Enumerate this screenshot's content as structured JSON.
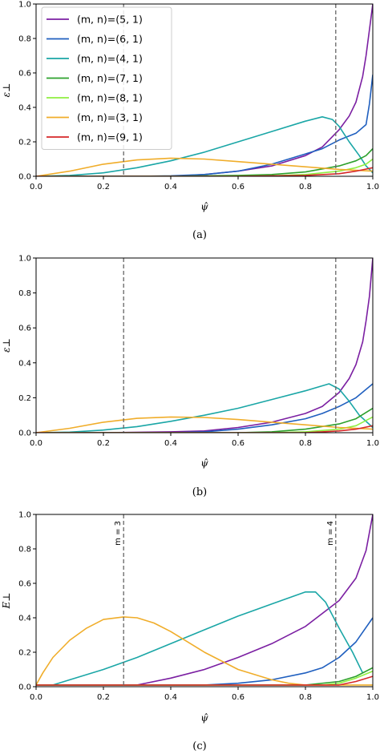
{
  "chart_data": [
    {
      "type": "line",
      "panel": "a",
      "caption": "(a)",
      "xlabel": "ψ̂",
      "ylabel": "ε⊥",
      "xlim": [
        0,
        1
      ],
      "ylim": [
        0,
        1
      ],
      "xticks": [
        "0.0",
        "0.2",
        "0.4",
        "0.6",
        "0.8",
        "1.0"
      ],
      "yticks": [
        "0.0",
        "0.2",
        "0.4",
        "0.6",
        "0.8",
        "1.0"
      ],
      "grid": false,
      "legend_position": "top-left",
      "vlines": [
        {
          "x": 0.26,
          "label": ""
        },
        {
          "x": 0.89,
          "label": ""
        }
      ],
      "series": [
        {
          "name": "(m, n)=(5, 1)",
          "color": "#7b1fa2",
          "x": [
            0,
            0.1,
            0.2,
            0.3,
            0.4,
            0.5,
            0.6,
            0.7,
            0.8,
            0.85,
            0.9,
            0.93,
            0.95,
            0.97,
            0.98,
            0.99,
            1.0
          ],
          "y": [
            0,
            0,
            0,
            0,
            0,
            0.01,
            0.03,
            0.06,
            0.12,
            0.17,
            0.27,
            0.35,
            0.43,
            0.58,
            0.7,
            0.85,
            1.0
          ]
        },
        {
          "name": "(m, n)=(6, 1)",
          "color": "#1f5fbf",
          "x": [
            0,
            0.1,
            0.2,
            0.3,
            0.4,
            0.5,
            0.6,
            0.7,
            0.8,
            0.85,
            0.9,
            0.95,
            0.98,
            0.99,
            1.0
          ],
          "y": [
            0,
            0,
            0,
            0,
            0.003,
            0.01,
            0.03,
            0.07,
            0.13,
            0.16,
            0.21,
            0.25,
            0.3,
            0.42,
            0.59
          ]
        },
        {
          "name": "(m, n)=(4, 1)",
          "color": "#1aa6a6",
          "x": [
            0,
            0.1,
            0.2,
            0.3,
            0.4,
            0.5,
            0.6,
            0.7,
            0.8,
            0.85,
            0.88,
            0.9,
            0.93,
            0.96,
            0.98,
            1.0
          ],
          "y": [
            0,
            0.005,
            0.02,
            0.05,
            0.09,
            0.14,
            0.2,
            0.26,
            0.32,
            0.345,
            0.33,
            0.29,
            0.2,
            0.12,
            0.06,
            0.02
          ]
        },
        {
          "name": "(m, n)=(7, 1)",
          "color": "#2ca02c",
          "x": [
            0,
            0.2,
            0.4,
            0.6,
            0.7,
            0.8,
            0.9,
            0.95,
            0.98,
            1.0
          ],
          "y": [
            0,
            0,
            0,
            0.005,
            0.01,
            0.025,
            0.06,
            0.09,
            0.12,
            0.16
          ]
        },
        {
          "name": "(m, n)=(8, 1)",
          "color": "#8fef40",
          "x": [
            0,
            0.5,
            0.7,
            0.8,
            0.9,
            0.95,
            0.98,
            1.0
          ],
          "y": [
            0,
            0,
            0.003,
            0.01,
            0.03,
            0.05,
            0.07,
            0.1
          ]
        },
        {
          "name": "(m, n)=(3, 1)",
          "color": "#f0ad2a",
          "x": [
            0,
            0.1,
            0.2,
            0.3,
            0.4,
            0.5,
            0.6,
            0.7,
            0.8,
            0.9,
            1.0
          ],
          "y": [
            0,
            0.03,
            0.07,
            0.095,
            0.105,
            0.1,
            0.085,
            0.07,
            0.055,
            0.04,
            0.03
          ]
        },
        {
          "name": "(m, n)=(9, 1)",
          "color": "#d62728",
          "x": [
            0,
            0.6,
            0.8,
            0.9,
            0.95,
            1.0
          ],
          "y": [
            0,
            0,
            0.005,
            0.015,
            0.03,
            0.05
          ]
        }
      ]
    },
    {
      "type": "line",
      "panel": "b",
      "caption": "(b)",
      "xlabel": "ψ̂",
      "ylabel": "ε⊥",
      "xlim": [
        0,
        1
      ],
      "ylim": [
        0,
        1
      ],
      "xticks": [
        "0.0",
        "0.2",
        "0.4",
        "0.6",
        "0.8",
        "1.0"
      ],
      "yticks": [
        "0.0",
        "0.2",
        "0.4",
        "0.6",
        "0.8",
        "1.0"
      ],
      "grid": false,
      "vlines": [
        {
          "x": 0.26,
          "label": ""
        },
        {
          "x": 0.89,
          "label": ""
        }
      ],
      "series": [
        {
          "color": "#7b1fa2",
          "x": [
            0,
            0.2,
            0.4,
            0.5,
            0.6,
            0.7,
            0.8,
            0.85,
            0.9,
            0.93,
            0.95,
            0.97,
            0.98,
            0.99,
            1.0
          ],
          "y": [
            0,
            0,
            0.005,
            0.01,
            0.03,
            0.06,
            0.11,
            0.15,
            0.23,
            0.31,
            0.39,
            0.52,
            0.64,
            0.78,
            1.0
          ]
        },
        {
          "color": "#1f5fbf",
          "x": [
            0,
            0.4,
            0.5,
            0.6,
            0.7,
            0.8,
            0.85,
            0.9,
            0.95,
            1.0
          ],
          "y": [
            0,
            0,
            0.005,
            0.02,
            0.045,
            0.08,
            0.11,
            0.15,
            0.2,
            0.28
          ]
        },
        {
          "color": "#1aa6a6",
          "x": [
            0,
            0.1,
            0.2,
            0.3,
            0.4,
            0.5,
            0.6,
            0.7,
            0.8,
            0.87,
            0.9,
            0.93,
            0.96,
            1.0
          ],
          "y": [
            0,
            0.003,
            0.015,
            0.035,
            0.065,
            0.1,
            0.14,
            0.19,
            0.24,
            0.28,
            0.25,
            0.18,
            0.1,
            0.03
          ]
        },
        {
          "color": "#2ca02c",
          "x": [
            0,
            0.6,
            0.7,
            0.8,
            0.9,
            0.95,
            1.0
          ],
          "y": [
            0,
            0,
            0.005,
            0.02,
            0.05,
            0.08,
            0.14
          ]
        },
        {
          "color": "#8fef40",
          "x": [
            0,
            0.7,
            0.8,
            0.9,
            0.95,
            1.0
          ],
          "y": [
            0,
            0,
            0.005,
            0.02,
            0.04,
            0.09
          ]
        },
        {
          "color": "#f0ad2a",
          "x": [
            0,
            0.1,
            0.2,
            0.3,
            0.4,
            0.5,
            0.6,
            0.7,
            0.8,
            0.9,
            1.0
          ],
          "y": [
            0,
            0.025,
            0.06,
            0.082,
            0.09,
            0.087,
            0.075,
            0.06,
            0.045,
            0.03,
            0.02
          ]
        },
        {
          "color": "#d62728",
          "x": [
            0,
            0.8,
            0.9,
            0.95,
            1.0
          ],
          "y": [
            0,
            0,
            0.01,
            0.02,
            0.04
          ]
        }
      ]
    },
    {
      "type": "line",
      "panel": "c",
      "caption": "(c)",
      "xlabel": "ψ̂",
      "ylabel": "E⊥",
      "xlim": [
        0,
        1
      ],
      "ylim": [
        0,
        1
      ],
      "xticks": [
        "0.0",
        "0.2",
        "0.4",
        "0.6",
        "0.8",
        "1.0"
      ],
      "yticks": [
        "0.0",
        "0.2",
        "0.4",
        "0.6",
        "0.8",
        "1.0"
      ],
      "grid": false,
      "vlines": [
        {
          "x": 0.26,
          "label": "m = 3"
        },
        {
          "x": 0.89,
          "label": "m = 4"
        }
      ],
      "series": [
        {
          "color": "#7b1fa2",
          "x": [
            0,
            0.3,
            0.4,
            0.5,
            0.6,
            0.7,
            0.8,
            0.9,
            0.95,
            0.98,
            1.0
          ],
          "y": [
            0.01,
            0.01,
            0.05,
            0.1,
            0.17,
            0.25,
            0.35,
            0.5,
            0.63,
            0.79,
            1.0
          ]
        },
        {
          "color": "#1f5fbf",
          "x": [
            0,
            0.5,
            0.6,
            0.7,
            0.8,
            0.85,
            0.9,
            0.95,
            1.0
          ],
          "y": [
            0.01,
            0.01,
            0.02,
            0.04,
            0.08,
            0.11,
            0.17,
            0.26,
            0.4
          ]
        },
        {
          "color": "#1aa6a6",
          "x": [
            0,
            0.05,
            0.1,
            0.2,
            0.3,
            0.4,
            0.5,
            0.6,
            0.7,
            0.8,
            0.83,
            0.86,
            0.9,
            0.94,
            0.97
          ],
          "y": [
            0.01,
            0.01,
            0.04,
            0.1,
            0.17,
            0.25,
            0.33,
            0.41,
            0.48,
            0.55,
            0.55,
            0.49,
            0.34,
            0.2,
            0.08
          ]
        },
        {
          "color": "#2ca02c",
          "x": [
            0,
            0.8,
            0.9,
            0.95,
            1.0
          ],
          "y": [
            0.01,
            0.01,
            0.03,
            0.06,
            0.11
          ]
        },
        {
          "color": "#8fef40",
          "x": [
            0,
            0.85,
            0.9,
            0.95,
            1.0
          ],
          "y": [
            0.01,
            0.01,
            0.02,
            0.05,
            0.09
          ]
        },
        {
          "color": "#f0ad2a",
          "x": [
            0,
            0.02,
            0.05,
            0.1,
            0.15,
            0.2,
            0.26,
            0.3,
            0.35,
            0.4,
            0.5,
            0.6,
            0.7,
            0.75,
            0.8,
            0.85,
            0.9,
            1.0
          ],
          "y": [
            0.01,
            0.08,
            0.17,
            0.27,
            0.34,
            0.39,
            0.405,
            0.4,
            0.37,
            0.32,
            0.2,
            0.1,
            0.04,
            0.02,
            0.01,
            0.01,
            0.01,
            0.01
          ]
        },
        {
          "color": "#d62728",
          "x": [
            0,
            0.9,
            0.95,
            1.0
          ],
          "y": [
            0.01,
            0.01,
            0.03,
            0.06
          ]
        }
      ]
    }
  ]
}
